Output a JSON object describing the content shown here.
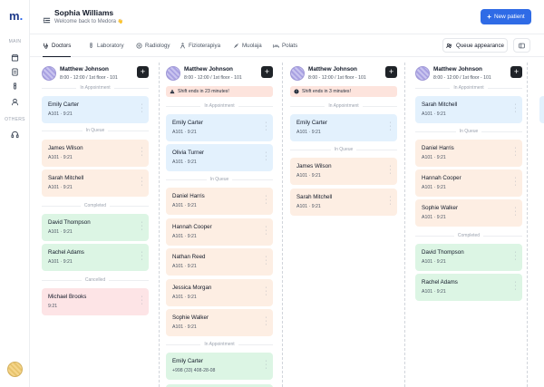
{
  "app": {
    "logo_letter": "m",
    "logo_dot": "."
  },
  "sidebar": {
    "main_label": "MAIN",
    "others_label": "OTHERS",
    "items": [
      {
        "icon": "calendar-icon"
      },
      {
        "icon": "document-icon"
      },
      {
        "icon": "test-tube-icon"
      },
      {
        "icon": "user-icon"
      }
    ],
    "others_items": [
      {
        "icon": "headset-icon"
      }
    ]
  },
  "header": {
    "user_name": "Sophia Williams",
    "welcome": "Welcome back to Medora",
    "wave": "👋",
    "new_patient_label": "New patient",
    "new_patient_plus": "+"
  },
  "tabs": [
    {
      "label": "Doctors",
      "icon": "stethoscope-icon",
      "active": true
    },
    {
      "label": "Laboratory",
      "icon": "test-tube-icon",
      "active": false
    },
    {
      "label": "Radiology",
      "icon": "radiology-icon",
      "active": false
    },
    {
      "label": "Fizioterapiya",
      "icon": "physio-icon",
      "active": false
    },
    {
      "label": "Muolaja",
      "icon": "bandage-icon",
      "active": false
    },
    {
      "label": "Polats",
      "icon": "bed-icon",
      "active": false
    }
  ],
  "toolbar": {
    "queue_appearance_label": "Queue appearance"
  },
  "colors": {
    "accent": "#2f6be6",
    "in_appointment": "#e3f1fd",
    "in_queue": "#fdeee3",
    "completed": "#dcf5e4",
    "cancelled": "#fde4e6",
    "alert": "#fde4dd"
  },
  "columns": [
    {
      "doctor": "Matthew Johnson",
      "schedule": "8:00 - 12:00 / 1st floor - 101",
      "add_label": "+",
      "alert": null,
      "sections": [
        {
          "label": "In Appointment",
          "cards": [
            {
              "name": "Emily Carter",
              "info": "A101 · 9:21",
              "status": "blue"
            }
          ]
        },
        {
          "label": "In Queue",
          "cards": [
            {
              "name": "James Wilson",
              "info": "A101 · 9:21",
              "status": "orange"
            },
            {
              "name": "Sarah Mitchell",
              "info": "A101 · 9:21",
              "status": "orange"
            }
          ]
        },
        {
          "label": "Completed",
          "cards": [
            {
              "name": "David Thompson",
              "info": "A101 · 9:21",
              "status": "green"
            },
            {
              "name": "Rachel Adams",
              "info": "A101 · 9:21",
              "status": "green"
            }
          ]
        },
        {
          "label": "Cancelled",
          "cards": [
            {
              "name": "Michael Brooks",
              "info": "9:21",
              "status": "red"
            }
          ]
        }
      ]
    },
    {
      "doctor": "Matthew Johnson",
      "schedule": "8:00 - 12:00 / 1st floor - 101",
      "add_label": "+",
      "alert": {
        "text": "Shift ends in 23 minutes!",
        "icon": "warning-triangle-icon"
      },
      "sections": [
        {
          "label": "In Appointment",
          "cards": [
            {
              "name": "Emily Carter",
              "info": "A101 · 9:21",
              "status": "blue"
            },
            {
              "name": "Olivia Turner",
              "info": "A101 · 9:21",
              "status": "blue"
            }
          ]
        },
        {
          "label": "In Queue",
          "cards": [
            {
              "name": "Daniel Harris",
              "info": "A101 · 9:21",
              "status": "orange"
            },
            {
              "name": "Hannah Cooper",
              "info": "A101 · 9:21",
              "status": "orange"
            },
            {
              "name": "Nathan Reed",
              "info": "A101 · 9:21",
              "status": "orange"
            },
            {
              "name": "Jessica Morgan",
              "info": "A101 · 9:21",
              "status": "orange"
            },
            {
              "name": "Sophie Walker",
              "info": "A101 · 9:21",
              "status": "orange"
            }
          ]
        },
        {
          "label": "In Appointment",
          "cards": [
            {
              "name": "Emily Carter",
              "info": "+998 (33) 408-28-08",
              "status": "green"
            }
          ]
        }
      ]
    },
    {
      "doctor": "Matthew Johnson",
      "schedule": "8:00 - 12:00 / 1st floor - 101",
      "add_label": "+",
      "alert": {
        "text": "Shift ends in 3 minutes!",
        "icon": "alert-circle-icon"
      },
      "sections": [
        {
          "label": "In Appointment",
          "cards": [
            {
              "name": "Emily Carter",
              "info": "A101 · 9:21",
              "status": "blue"
            }
          ]
        },
        {
          "label": "In Queue",
          "cards": [
            {
              "name": "James Wilson",
              "info": "A101 · 9:21",
              "status": "orange"
            },
            {
              "name": "Sarah Mitchell",
              "info": "A101 · 9:21",
              "status": "orange"
            }
          ]
        }
      ]
    },
    {
      "doctor": "Matthew Johnson",
      "schedule": "8:00 - 12:00 / 1st floor - 101",
      "add_label": "+",
      "alert": null,
      "sections": [
        {
          "label": "In Appointment",
          "cards": [
            {
              "name": "Sarah Mitchell",
              "info": "A101 · 9:21",
              "status": "blue"
            }
          ]
        },
        {
          "label": "In Queue",
          "cards": [
            {
              "name": "Daniel Harris",
              "info": "A101 · 9:21",
              "status": "orange"
            },
            {
              "name": "Hannah Cooper",
              "info": "A101 · 9:21",
              "status": "orange"
            },
            {
              "name": "Sophie Walker",
              "info": "A101 · 9:21",
              "status": "orange"
            }
          ]
        },
        {
          "label": "Completed",
          "cards": [
            {
              "name": "David Thompson",
              "info": "A101 · 9:21",
              "status": "green"
            },
            {
              "name": "Rachel Adams",
              "info": "A101 · 9:21",
              "status": "green"
            }
          ]
        }
      ]
    }
  ]
}
